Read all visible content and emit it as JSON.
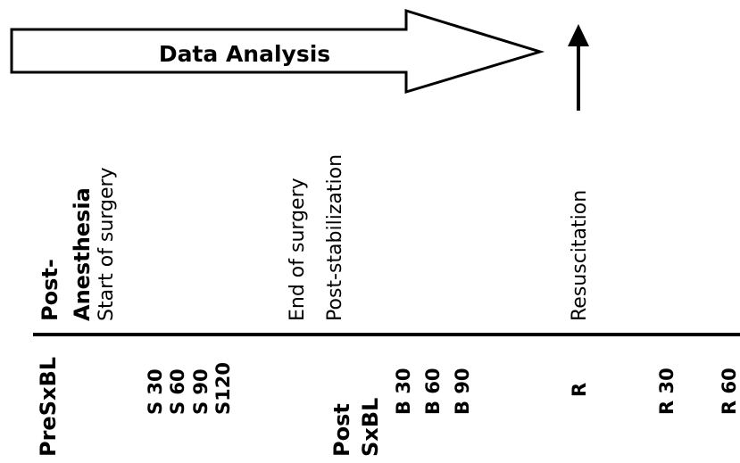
{
  "diagram": {
    "analysis_label": "Data Analysis",
    "phase_labels": {
      "post_anesthesia_line1": "Post-",
      "post_anesthesia_line2": "Anesthesia",
      "start_surgery": "Start of surgery",
      "end_surgery": "End of surgery",
      "post_stabilization": "Post-stabilization",
      "resuscitation": "Resuscitation"
    },
    "timepoints": {
      "pre_sx_bl": "PreSxBL",
      "s30": "S 30",
      "s60": "S 60",
      "s90": "S 90",
      "s120": "S120",
      "post_sx_bl_line1": "Post",
      "post_sx_bl_line2": "SxBL",
      "b30": "B 30",
      "b60": "B 60",
      "b90": "B 90",
      "r": "R",
      "r30": "R 30",
      "r60": "R 60"
    },
    "colors": {
      "ink": "#000000",
      "background": "#ffffff"
    }
  }
}
